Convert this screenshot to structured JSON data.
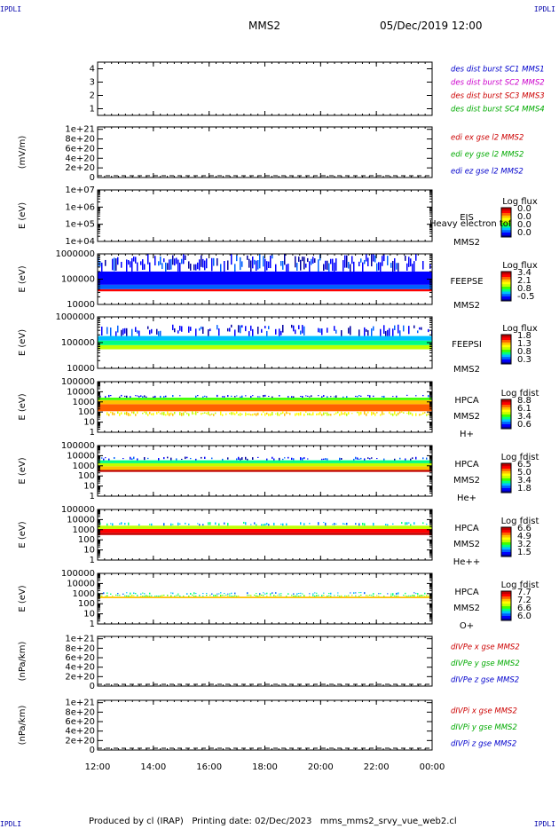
{
  "header": {
    "corner_tl": "IPDLI",
    "corner_tr": "IPDLI",
    "corner_bl": "IPDLI",
    "corner_br": "IPDLI",
    "spacecraft": "MMS2",
    "datetime": "05/Dec/2019 12:00"
  },
  "footer": {
    "text": "Produced by cl (IRAP)   Printing date: 02/Dec/2023   mms_mms2_srvy_vue_web2.cl"
  },
  "colors": {
    "spectrogram": [
      "#0000a0",
      "#0000ff",
      "#0060ff",
      "#00c0ff",
      "#00ff80",
      "#40ff00",
      "#c0ff00",
      "#ffff00",
      "#ffc000",
      "#ff6000",
      "#ff0000",
      "#c00000"
    ]
  },
  "chart_data": [
    {
      "type": "line",
      "ylabel": "",
      "ylim": [
        0.5,
        4.5
      ],
      "yticks": [
        "4",
        "3",
        "2",
        "1"
      ],
      "ytick_values": [
        4,
        3,
        2,
        1
      ],
      "legend": [
        {
          "text": "des dist burst SC1 MMS1",
          "color": "#0000cc"
        },
        {
          "text": "des dist burst SC2 MMS2",
          "color": "#cc00cc"
        },
        {
          "text": "des dist burst SC3 MMS3",
          "color": "#cc0000"
        },
        {
          "text": "des dist burst SC4 MMS4",
          "color": "#00aa00"
        }
      ]
    },
    {
      "type": "line",
      "ylabel": "(mV/m)",
      "ylim": [
        0,
        1.05e+21
      ],
      "yticks": [
        "1e+21",
        "8e+20",
        "6e+20",
        "4e+20",
        "2e+20",
        "0"
      ],
      "ytick_values": [
        1e+21,
        8e+20,
        6e+20,
        4e+20,
        2e+20,
        0
      ],
      "zero_line": true,
      "legend": [
        {
          "text": "edi ex gse l2 MMS2",
          "color": "#cc0000"
        },
        {
          "text": "edi ey gse l2 MMS2",
          "color": "#00aa00"
        },
        {
          "text": "edi ez gse l2 MMS2",
          "color": "#0000cc"
        }
      ]
    },
    {
      "type": "heatmap",
      "ylabel": "E (eV)",
      "ylog": true,
      "ylim": [
        10000.0,
        10000000.0
      ],
      "yticks": [
        "1e+07",
        "1e+06",
        "1e+05",
        "1e+04"
      ],
      "ytick_values": [
        10000000.0,
        1000000.0,
        100000.0,
        10000.0
      ],
      "instrument": [
        "EIS",
        "MMS2"
      ],
      "overlay": "Heavy electron tof",
      "colorbar_title": "Log flux",
      "colorbar_ticks": [
        "0.0",
        "0.0",
        "0.0",
        "0.0"
      ],
      "bands": []
    },
    {
      "type": "heatmap",
      "ylabel": "E (eV)",
      "ylog": true,
      "ylim": [
        10000.0,
        1000000.0
      ],
      "yticks": [
        "1000000",
        "100000",
        "10000"
      ],
      "ytick_values": [
        1000000.0,
        100000.0,
        10000.0
      ],
      "instrument": [
        "FEEPSE",
        "MMS2"
      ],
      "colorbar_title": "Log flux",
      "colorbar_ticks": [
        "3.4",
        "2.1",
        "0.8",
        "-0.5"
      ],
      "bands": [
        {
          "emin": 33000,
          "emax": 40000,
          "level": 10
        },
        {
          "emin": 40000,
          "emax": 60000,
          "level": 2
        },
        {
          "emin": 60000,
          "emax": 200000,
          "level": 1
        },
        {
          "emin": 200000,
          "emax": 1000000,
          "level": 1,
          "density": 0.75
        }
      ]
    },
    {
      "type": "heatmap",
      "ylabel": "E (eV)",
      "ylog": true,
      "ylim": [
        10000.0,
        1000000.0
      ],
      "yticks": [
        "1000000",
        "100000",
        "10000"
      ],
      "ytick_values": [
        1000000.0,
        100000.0,
        10000.0
      ],
      "instrument": [
        "FEEPSI",
        "MMS2"
      ],
      "colorbar_title": "Log flux",
      "colorbar_ticks": [
        "1.8",
        "1.3",
        "0.8",
        "0.3"
      ],
      "bands": [
        {
          "emin": 55000,
          "emax": 80000,
          "level": 6
        },
        {
          "emin": 80000,
          "emax": 120000,
          "level": 4
        },
        {
          "emin": 120000,
          "emax": 180000,
          "level": 3
        },
        {
          "emin": 180000,
          "emax": 500000,
          "level": 1,
          "density": 0.5
        }
      ]
    },
    {
      "type": "heatmap",
      "ylabel": "E (eV)",
      "ylog": true,
      "ylim": [
        1,
        100000.0
      ],
      "yticks": [
        "100000",
        "10000",
        "1000",
        "100",
        "10",
        "1"
      ],
      "ytick_values": [
        100000.0,
        10000.0,
        1000.0,
        100.0,
        10,
        1
      ],
      "instrument": [
        "HPCA",
        "MMS2",
        "H+"
      ],
      "colorbar_title": "Log fdist",
      "colorbar_ticks": [
        "8.8",
        "6.1",
        "3.4",
        "0.6"
      ],
      "bands": [
        {
          "emin": 40,
          "emax": 120,
          "level": 7,
          "density": 0.85
        },
        {
          "emin": 120,
          "emax": 600,
          "level": 9
        },
        {
          "emin": 600,
          "emax": 1500,
          "level": 8
        },
        {
          "emin": 1500,
          "emax": 2600,
          "level": 5
        },
        {
          "emin": 2600,
          "emax": 5000,
          "level": 1,
          "density": 0.45
        }
      ]
    },
    {
      "type": "heatmap",
      "ylabel": "E (eV)",
      "ylog": true,
      "ylim": [
        1,
        100000.0
      ],
      "yticks": [
        "100000",
        "10000",
        "1000",
        "100",
        "10",
        "1"
      ],
      "ytick_values": [
        100000.0,
        10000.0,
        1000.0,
        100.0,
        10,
        1
      ],
      "instrument": [
        "HPCA",
        "MMS2",
        "He+"
      ],
      "colorbar_title": "Log fdist",
      "colorbar_ticks": [
        "6.5",
        "5.0",
        "3.4",
        "1.8"
      ],
      "bands": [
        {
          "emin": 250,
          "emax": 400,
          "level": 11
        },
        {
          "emin": 400,
          "emax": 900,
          "level": 8
        },
        {
          "emin": 900,
          "emax": 1800,
          "level": 6
        },
        {
          "emin": 1800,
          "emax": 3500,
          "level": 4
        },
        {
          "emin": 3500,
          "emax": 8000,
          "level": 1,
          "density": 0.4
        }
      ]
    },
    {
      "type": "heatmap",
      "ylabel": "E (eV)",
      "ylog": true,
      "ylim": [
        1,
        100000.0
      ],
      "yticks": [
        "100000",
        "10000",
        "1000",
        "100",
        "10",
        "1"
      ],
      "ytick_values": [
        100000.0,
        10000.0,
        1000.0,
        100.0,
        10,
        1
      ],
      "instrument": [
        "HPCA",
        "MMS2",
        "He++"
      ],
      "colorbar_title": "Log fdist",
      "colorbar_ticks": [
        "6.6",
        "4.9",
        "3.2",
        "1.5"
      ],
      "bands": [
        {
          "emin": 300,
          "emax": 500,
          "level": 11
        },
        {
          "emin": 500,
          "emax": 1200,
          "level": 10
        },
        {
          "emin": 1200,
          "emax": 2500,
          "level": 6
        },
        {
          "emin": 2500,
          "emax": 6000,
          "level": 3,
          "density": 0.35
        }
      ]
    },
    {
      "type": "heatmap",
      "ylabel": "E (eV)",
      "ylog": true,
      "ylim": [
        1,
        100000.0
      ],
      "yticks": [
        "100000",
        "10000",
        "1000",
        "100",
        "10",
        "1"
      ],
      "ytick_values": [
        100000.0,
        10000.0,
        1000.0,
        100.0,
        10,
        1
      ],
      "instrument": [
        "HPCA",
        "MMS2",
        "O+"
      ],
      "colorbar_title": "Log fdist",
      "colorbar_ticks": [
        "7.7",
        "7.2",
        "6.6",
        "6.0"
      ],
      "bands": [
        {
          "emin": 350,
          "emax": 500,
          "level": 8
        },
        {
          "emin": 500,
          "emax": 800,
          "level": 5,
          "density": 0.7
        },
        {
          "emin": 800,
          "emax": 1400,
          "level": 3,
          "density": 0.4
        }
      ]
    },
    {
      "type": "line",
      "ylabel": "(nPa/km)",
      "ylim": [
        0,
        1.05e+21
      ],
      "yticks": [
        "1e+21",
        "8e+20",
        "6e+20",
        "4e+20",
        "2e+20",
        "0"
      ],
      "ytick_values": [
        1e+21,
        8e+20,
        6e+20,
        4e+20,
        2e+20,
        0
      ],
      "zero_line": true,
      "legend": [
        {
          "text": "dIVPe x gse MMS2",
          "color": "#cc0000"
        },
        {
          "text": "dIVPe y gse MMS2",
          "color": "#00aa00"
        },
        {
          "text": "dIVPe z gse MMS2",
          "color": "#0000cc"
        }
      ]
    },
    {
      "type": "line",
      "ylabel": "(nPa/km)",
      "ylim": [
        0,
        1.05e+21
      ],
      "yticks": [
        "1e+21",
        "8e+20",
        "6e+20",
        "4e+20",
        "2e+20",
        "0"
      ],
      "ytick_values": [
        1e+21,
        8e+20,
        6e+20,
        4e+20,
        2e+20,
        0
      ],
      "zero_line": true,
      "legend": [
        {
          "text": "dIVPi x gse MMS2",
          "color": "#cc0000"
        },
        {
          "text": "dIVPi y gse MMS2",
          "color": "#00aa00"
        },
        {
          "text": "dIVPi z gse MMS2",
          "color": "#0000cc"
        }
      ]
    }
  ],
  "time_axis": {
    "ticks": [
      "12:00",
      "14:00",
      "16:00",
      "18:00",
      "20:00",
      "22:00",
      "00:00"
    ],
    "start_hour": 12,
    "end_hour": 24
  }
}
